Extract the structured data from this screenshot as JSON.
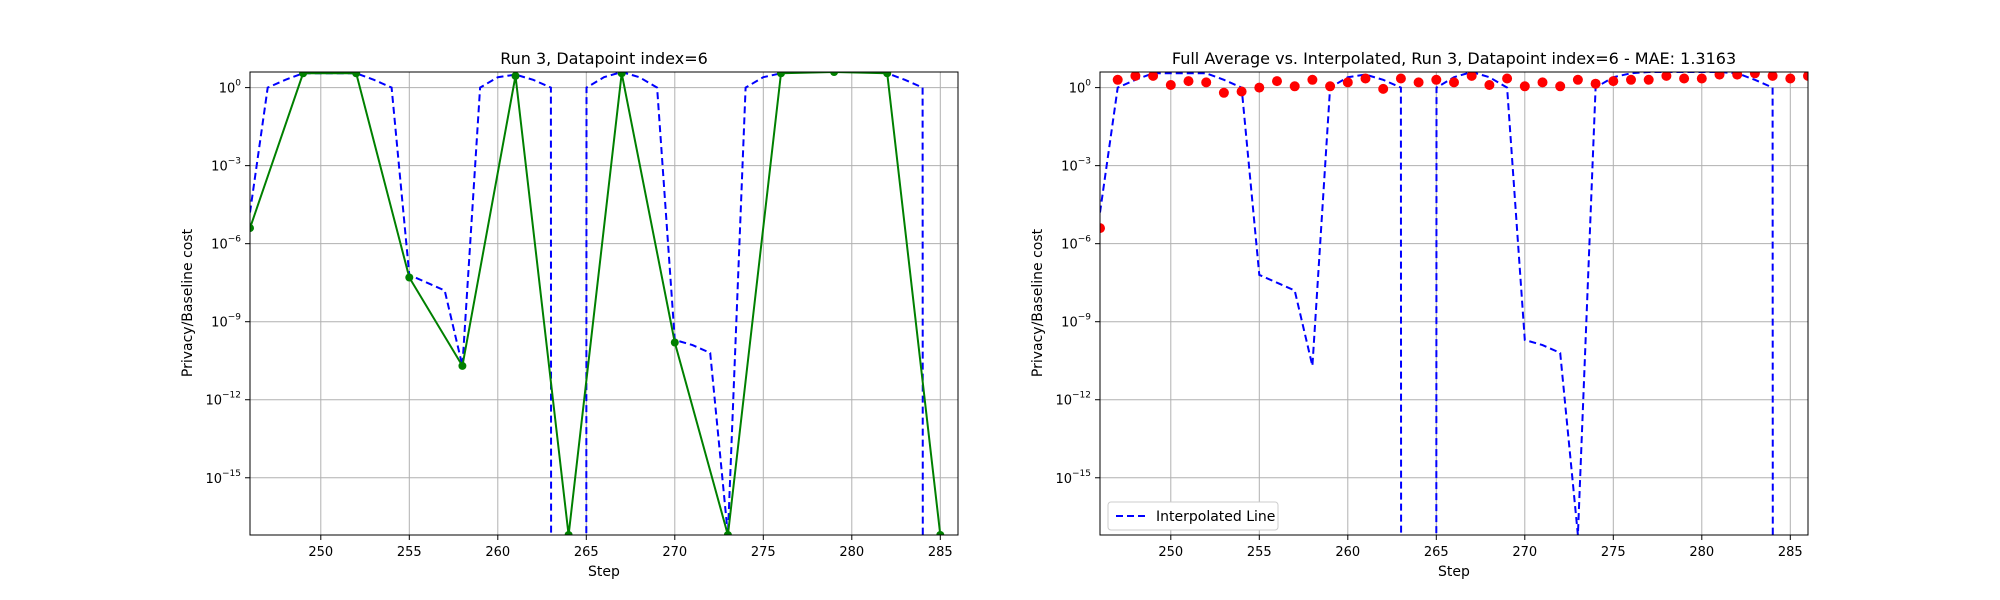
{
  "chart_data": [
    {
      "type": "line",
      "title": "Run 3, Datapoint index=6",
      "xlabel": "Step",
      "ylabel": "Privacy/Baseline cost",
      "xlim": [
        246,
        286
      ],
      "ylim": [
        -17.2,
        0.6
      ],
      "yscale": "log",
      "grid": true,
      "x_ticks": [
        250,
        255,
        260,
        265,
        270,
        275,
        280,
        285
      ],
      "y_ticks": [
        {
          "exp": 0,
          "label": "10^0"
        },
        {
          "exp": -3,
          "label": "10^-3"
        },
        {
          "exp": -6,
          "label": "10^-6"
        },
        {
          "exp": -9,
          "label": "10^-9"
        },
        {
          "exp": -12,
          "label": "10^-12"
        },
        {
          "exp": -15,
          "label": "10^-15"
        }
      ],
      "series": [
        {
          "style": "dashed",
          "color": "#0000ff",
          "x": [
            246,
            247,
            248,
            249,
            250,
            251,
            252,
            253,
            254,
            255,
            256,
            257,
            258,
            259,
            260,
            261,
            262,
            263,
            263.01,
            264,
            265,
            265.01,
            266,
            267,
            268,
            269,
            270,
            271,
            272,
            273,
            274,
            275,
            276,
            277,
            278,
            279,
            280,
            281,
            282,
            283,
            284,
            284.01,
            285
          ],
          "log10_y": [
            -4.8,
            0.0,
            0.3,
            0.55,
            0.55,
            0.55,
            0.55,
            0.3,
            0.0,
            -7.2,
            -7.5,
            -7.8,
            -10.7,
            0.0,
            0.4,
            0.5,
            0.3,
            0.0,
            -18,
            -18,
            -18,
            0.0,
            0.4,
            0.6,
            0.4,
            0.0,
            -9.7,
            -9.9,
            -10.2,
            -17.2,
            0.0,
            0.4,
            0.55,
            0.6,
            0.6,
            0.6,
            0.6,
            0.6,
            0.55,
            0.3,
            0.0,
            -18,
            -18
          ]
        },
        {
          "style": "solid-markers",
          "color": "#008000",
          "x": [
            246,
            249,
            252,
            255,
            258,
            261,
            264,
            267,
            270,
            273,
            276,
            279,
            282,
            285
          ],
          "log10_y": [
            -5.4,
            0.55,
            0.55,
            -7.3,
            -10.7,
            0.45,
            -17.2,
            0.55,
            -9.8,
            -17.2,
            0.55,
            0.6,
            0.55,
            -17.2
          ]
        }
      ]
    },
    {
      "type": "line",
      "title": "Full Average vs. Interpolated, Run 3, Datapoint index=6 - MAE: 1.3163",
      "xlabel": "Step",
      "ylabel": "Privacy/Baseline cost",
      "xlim": [
        246,
        286
      ],
      "ylim": [
        -17.2,
        0.6
      ],
      "yscale": "log",
      "grid": true,
      "legend": "lower-left",
      "x_ticks": [
        250,
        255,
        260,
        265,
        270,
        275,
        280,
        285
      ],
      "y_ticks": [
        {
          "exp": 0,
          "label": "10^0"
        },
        {
          "exp": -3,
          "label": "10^-3"
        },
        {
          "exp": -6,
          "label": "10^-6"
        },
        {
          "exp": -9,
          "label": "10^-9"
        },
        {
          "exp": -12,
          "label": "10^-12"
        },
        {
          "exp": -15,
          "label": "10^-15"
        }
      ],
      "series": [
        {
          "name": "Interpolated Line",
          "style": "dashed",
          "color": "#0000ff",
          "x": [
            246,
            247,
            248,
            249,
            250,
            251,
            252,
            253,
            254,
            255,
            256,
            257,
            258,
            259,
            260,
            261,
            262,
            263,
            263.01,
            264,
            265,
            265.01,
            266,
            267,
            268,
            269,
            270,
            271,
            272,
            273,
            274,
            275,
            276,
            277,
            278,
            279,
            280,
            281,
            282,
            283,
            284,
            284.01,
            285
          ],
          "log10_y": [
            -4.8,
            0.0,
            0.3,
            0.55,
            0.55,
            0.55,
            0.55,
            0.3,
            0.0,
            -7.2,
            -7.5,
            -7.8,
            -10.7,
            0.0,
            0.4,
            0.5,
            0.3,
            0.0,
            -18,
            -18,
            -18,
            0.0,
            0.4,
            0.6,
            0.4,
            0.0,
            -9.7,
            -9.9,
            -10.2,
            -17.2,
            0.0,
            0.4,
            0.55,
            0.6,
            0.6,
            0.6,
            0.6,
            0.6,
            0.55,
            0.3,
            0.0,
            -18,
            -18
          ]
        },
        {
          "style": "markers",
          "color": "#ff0000",
          "x": [
            246,
            247,
            248,
            249,
            250,
            251,
            252,
            253,
            254,
            255,
            256,
            257,
            258,
            259,
            260,
            261,
            262,
            263,
            264,
            265,
            266,
            267,
            268,
            269,
            270,
            271,
            272,
            273,
            274,
            275,
            276,
            277,
            278,
            279,
            280,
            281,
            282,
            283,
            284,
            285,
            286
          ],
          "log10_y": [
            -5.4,
            0.3,
            0.45,
            0.45,
            0.1,
            0.25,
            0.2,
            -0.2,
            -0.15,
            0.0,
            0.25,
            0.05,
            0.3,
            0.05,
            0.2,
            0.35,
            -0.05,
            0.35,
            0.2,
            0.3,
            0.2,
            0.45,
            0.1,
            0.35,
            0.05,
            0.2,
            0.05,
            0.3,
            0.15,
            0.25,
            0.3,
            0.3,
            0.45,
            0.35,
            0.35,
            0.5,
            0.5,
            0.55,
            0.45,
            0.35,
            0.45
          ]
        }
      ]
    }
  ]
}
